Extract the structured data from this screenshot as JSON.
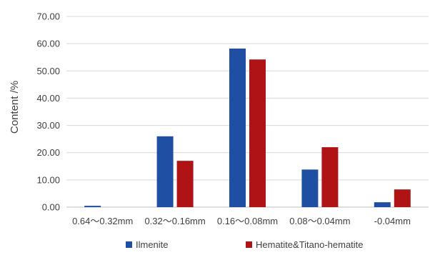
{
  "chart_data": {
    "type": "bar",
    "title": "",
    "xlabel": "",
    "ylabel": "Content /%",
    "ylim": [
      0,
      70
    ],
    "y_ticks": [
      "0.00",
      "10.00",
      "20.00",
      "30.00",
      "40.00",
      "50.00",
      "60.00",
      "70.00"
    ],
    "grid": true,
    "legend_position": "bottom",
    "categories": [
      "0.64～0.32mm",
      "0.32～0.16mm",
      "0.16～0.08mm",
      "0.08～0.04mm",
      "-0.04mm"
    ],
    "series": [
      {
        "name": "Ilmenite",
        "color": "#1f4fa3",
        "values": [
          0.5,
          26.0,
          58.2,
          13.8,
          1.8
        ]
      },
      {
        "name": "Hematite&Titano-hematite",
        "color": "#b01316",
        "values": [
          0.0,
          17.0,
          54.2,
          22.0,
          6.5
        ]
      }
    ]
  }
}
